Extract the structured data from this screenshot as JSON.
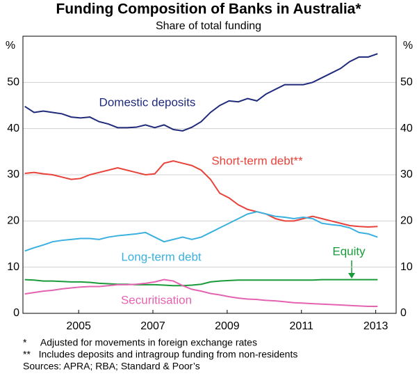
{
  "chart_data": {
    "type": "line",
    "title": "Funding Composition of Banks in Australia*",
    "subtitle": "Share of total funding",
    "ylabel": "%",
    "y2label": "%",
    "x": [
      2003.55,
      2003.8,
      2004.05,
      2004.3,
      2004.55,
      2004.8,
      2005.05,
      2005.3,
      2005.55,
      2005.8,
      2006.05,
      2006.3,
      2006.55,
      2006.8,
      2007.05,
      2007.3,
      2007.55,
      2007.8,
      2008.05,
      2008.3,
      2008.55,
      2008.8,
      2009.05,
      2009.3,
      2009.55,
      2009.8,
      2010.05,
      2010.3,
      2010.55,
      2010.8,
      2011.05,
      2011.3,
      2011.55,
      2011.8,
      2012.05,
      2012.3,
      2012.55,
      2012.8,
      2013.05
    ],
    "xlim": [
      2003.5,
      2013.55
    ],
    "xticks": [
      2005,
      2007,
      2009,
      2011,
      2013
    ],
    "ylim": [
      0,
      60
    ],
    "yticks": [
      0,
      10,
      20,
      30,
      40,
      50
    ],
    "y2lim": [
      0,
      60
    ],
    "y2ticks": [
      0,
      10,
      20,
      30,
      40,
      50
    ],
    "grid": true,
    "series": [
      {
        "name": "Domestic deposits",
        "color": "#1f2a7a",
        "values": [
          44.8,
          43.5,
          43.8,
          43.5,
          43.2,
          42.5,
          42.3,
          42.5,
          41.5,
          41,
          40.2,
          40.2,
          40.3,
          40.8,
          40.2,
          40.8,
          39.8,
          39.5,
          40.3,
          41.5,
          43.5,
          45,
          46,
          45.8,
          46.5,
          46,
          47.5,
          48.5,
          49.5,
          49.5,
          49.5,
          50,
          51,
          52,
          53,
          54.5,
          55.5,
          55.5,
          56.2
        ]
      },
      {
        "name": "Short-term debt**",
        "color": "#e8423a",
        "values": [
          30.3,
          30.5,
          30.2,
          30,
          29.5,
          29,
          29.2,
          30,
          30.5,
          31,
          31.5,
          31,
          30.5,
          30,
          30.2,
          32.5,
          33,
          32.5,
          32,
          31,
          29,
          26,
          25,
          23.5,
          22.5,
          22,
          21.5,
          20.5,
          20,
          20,
          20.5,
          21,
          20.5,
          20,
          19.5,
          19,
          18.8,
          18.7,
          18.8
        ]
      },
      {
        "name": "Long-term debt",
        "color": "#3ab0e0",
        "values": [
          13.5,
          14.2,
          14.8,
          15.5,
          15.8,
          16,
          16.2,
          16.2,
          16,
          16.5,
          16.8,
          17,
          17.2,
          17.5,
          16.5,
          15.5,
          16,
          16.5,
          16,
          16.5,
          17.5,
          18.5,
          19.5,
          20.5,
          21.5,
          22,
          21.5,
          21,
          20.8,
          20.5,
          20.8,
          20.5,
          19.5,
          19.2,
          19,
          18.5,
          17.5,
          17.2,
          16.5
        ]
      },
      {
        "name": "Equity",
        "color": "#1a9a3a",
        "values": [
          7.3,
          7.2,
          7,
          7,
          6.9,
          6.8,
          6.8,
          6.7,
          6.5,
          6.4,
          6.3,
          6.3,
          6.2,
          6.2,
          6.2,
          6.1,
          6,
          6,
          6.1,
          6.3,
          6.8,
          7,
          7.1,
          7.2,
          7.2,
          7.2,
          7.2,
          7.2,
          7.2,
          7.2,
          7.2,
          7.2,
          7.3,
          7.3,
          7.3,
          7.3,
          7.3,
          7.3,
          7.3
        ]
      },
      {
        "name": "Securitisation",
        "color": "#e463b0",
        "values": [
          4.2,
          4.5,
          4.8,
          5,
          5.3,
          5.5,
          5.7,
          5.8,
          5.8,
          6,
          6.2,
          6.2,
          6.3,
          6.5,
          6.8,
          7.3,
          7,
          6,
          5.2,
          4.8,
          4.3,
          4,
          3.6,
          3.3,
          3.1,
          3,
          2.8,
          2.7,
          2.5,
          2.3,
          2.2,
          2.1,
          2,
          1.9,
          1.8,
          1.7,
          1.6,
          1.5,
          1.5
        ]
      }
    ],
    "footnotes": [
      "*     Adjusted for movements in foreign exchange rates",
      "**   Includes deposits and intragroup funding from non-residents",
      "Sources: APRA; RBA; Standard & Poor’s"
    ]
  }
}
